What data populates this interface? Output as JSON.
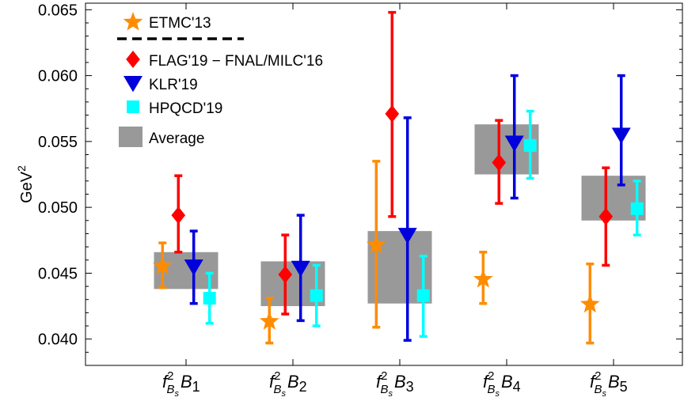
{
  "chart_data": {
    "type": "scatter",
    "ylabel": "GeV",
    "ylabel_sup": "2",
    "ylim": [
      0.038,
      0.0655
    ],
    "yticks": [
      "0.040",
      "0.045",
      "0.050",
      "0.055",
      "0.060",
      "0.065"
    ],
    "ytick_values": [
      0.04,
      0.045,
      0.05,
      0.055,
      0.06,
      0.065
    ],
    "categories": [
      {
        "f": "f",
        "sup": "2",
        "sub": "B",
        "subsub": "s",
        "B": "B",
        "index": "1"
      },
      {
        "f": "f",
        "sup": "2",
        "sub": "B",
        "subsub": "s",
        "B": "B",
        "index": "2"
      },
      {
        "f": "f",
        "sup": "2",
        "sub": "B",
        "subsub": "s",
        "B": "B",
        "index": "3"
      },
      {
        "f": "f",
        "sup": "2",
        "sub": "B",
        "subsub": "s",
        "B": "B",
        "index": "4"
      },
      {
        "f": "f",
        "sup": "2",
        "sub": "B",
        "subsub": "s",
        "B": "B",
        "index": "5"
      }
    ],
    "legend_position": "top-left",
    "legend": [
      {
        "label": "ETMC'13",
        "marker": "star",
        "color": "#FF8C00"
      },
      {
        "label": "",
        "marker": "dashed-line",
        "color": "#000000"
      },
      {
        "label": "FLAG'19 − FNAL/MILC'16",
        "marker": "diamond",
        "color": "#FF0000"
      },
      {
        "label": "KLR'19",
        "marker": "triangle-down",
        "color": "#0000DD"
      },
      {
        "label": "HPQCD'19",
        "marker": "square",
        "color": "#00FFFF"
      },
      {
        "label": "Average",
        "marker": "box",
        "color": "#999999"
      }
    ],
    "series": [
      {
        "name": "ETMC'13",
        "marker": "star",
        "color": "#FF8C00",
        "offset": -0.55,
        "points": [
          {
            "y": 0.0456,
            "lo": 0.0439,
            "hi": 0.0473
          },
          {
            "y": 0.0414,
            "lo": 0.0397,
            "hi": 0.0431
          },
          {
            "y": 0.0472,
            "lo": 0.0409,
            "hi": 0.0535
          },
          {
            "y": 0.0446,
            "lo": 0.0427,
            "hi": 0.0466
          },
          {
            "y": 0.0427,
            "lo": 0.0397,
            "hi": 0.0457
          }
        ]
      },
      {
        "name": "FLAG'19 − FNAL/MILC'16",
        "marker": "diamond",
        "color": "#FF0000",
        "offset": -0.18,
        "points": [
          {
            "y": 0.0494,
            "lo": 0.0466,
            "hi": 0.0524
          },
          {
            "y": 0.0449,
            "lo": 0.0419,
            "hi": 0.0479
          },
          {
            "y": 0.0571,
            "lo": 0.0493,
            "hi": 0.0648
          },
          {
            "y": 0.0534,
            "lo": 0.0503,
            "hi": 0.0566
          },
          {
            "y": 0.0493,
            "lo": 0.0456,
            "hi": 0.053
          }
        ]
      },
      {
        "name": "KLR'19",
        "marker": "triangle-down",
        "color": "#0000DD",
        "offset": 0.18,
        "points": [
          {
            "y": 0.0455,
            "lo": 0.0427,
            "hi": 0.0482
          },
          {
            "y": 0.0454,
            "lo": 0.0414,
            "hi": 0.0494
          },
          {
            "y": 0.0479,
            "lo": 0.0399,
            "hi": 0.0568
          },
          {
            "y": 0.0549,
            "lo": 0.0507,
            "hi": 0.06
          },
          {
            "y": 0.0555,
            "lo": 0.0517,
            "hi": 0.06
          }
        ]
      },
      {
        "name": "HPQCD'19",
        "marker": "square",
        "color": "#00FFFF",
        "offset": 0.55,
        "points": [
          {
            "y": 0.0431,
            "lo": 0.0412,
            "hi": 0.045
          },
          {
            "y": 0.0433,
            "lo": 0.041,
            "hi": 0.0456
          },
          {
            "y": 0.0433,
            "lo": 0.0402,
            "hi": 0.0463
          },
          {
            "y": 0.0547,
            "lo": 0.0522,
            "hi": 0.0573
          },
          {
            "y": 0.0499,
            "lo": 0.0479,
            "hi": 0.052
          }
        ]
      }
    ],
    "average": {
      "name": "Average",
      "color": "#999999",
      "half_width": 0.75,
      "bands": [
        {
          "lo": 0.0438,
          "hi": 0.0466
        },
        {
          "lo": 0.0425,
          "hi": 0.0459
        },
        {
          "lo": 0.0427,
          "hi": 0.0482
        },
        {
          "lo": 0.0525,
          "hi": 0.0563
        },
        {
          "lo": 0.049,
          "hi": 0.0524
        }
      ]
    }
  }
}
